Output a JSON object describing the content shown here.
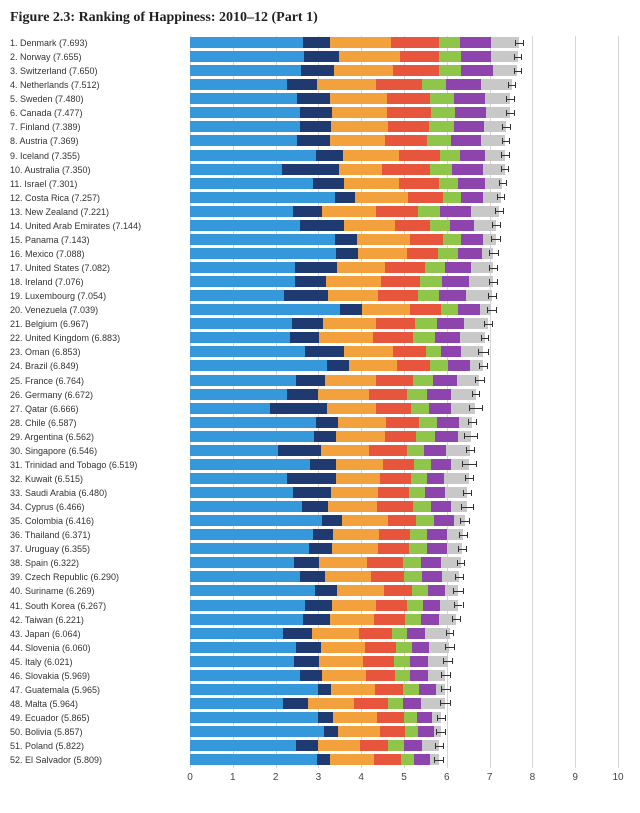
{
  "title": "Figure 2.3: Ranking of Happiness: 2010–12 (Part 1)",
  "chart": {
    "type": "bar",
    "xlim": [
      0,
      10
    ],
    "xticks": [
      0,
      1,
      2,
      3,
      4,
      5,
      6,
      7,
      8,
      9,
      10
    ],
    "grid_color": "#d6d6d6",
    "background_color": "#ffffff",
    "label_font": "Arial",
    "label_fontsize": 9,
    "tick_fontsize": 10,
    "colors": {
      "c1": "#3498db",
      "c2": "#1f3a70",
      "c3": "#f2a13c",
      "c4": "#e7553c",
      "c5": "#8fc549",
      "c6": "#8e44ad",
      "c7": "#c8c8c8",
      "err": "#333333"
    },
    "error_halfwidth": 0.09,
    "rows": [
      {
        "rank": 1,
        "country": "Denmark",
        "score": 7.693,
        "seg": [
          2.6,
          0.6,
          1.4,
          1.1,
          0.5,
          0.7,
          0.65
        ],
        "err": 0.09
      },
      {
        "rank": 2,
        "country": "Norway",
        "score": 7.655,
        "seg": [
          2.6,
          0.8,
          1.4,
          0.9,
          0.5,
          0.7,
          0.6
        ],
        "err": 0.09
      },
      {
        "rank": 3,
        "country": "Switzerland",
        "score": 7.65,
        "seg": [
          2.55,
          0.75,
          1.35,
          1.05,
          0.5,
          0.75,
          0.55
        ],
        "err": 0.09
      },
      {
        "rank": 4,
        "country": "Netherlands",
        "score": 7.512,
        "seg": [
          2.22,
          0.7,
          1.35,
          1.05,
          0.55,
          0.8,
          0.7
        ],
        "err": 0.09
      },
      {
        "rank": 5,
        "country": "Sweden",
        "score": 7.48,
        "seg": [
          2.45,
          0.75,
          1.3,
          1.0,
          0.55,
          0.7,
          0.58
        ],
        "err": 0.09
      },
      {
        "rank": 6,
        "country": "Canada",
        "score": 7.477,
        "seg": [
          2.5,
          0.75,
          1.25,
          1.0,
          0.55,
          0.7,
          0.55
        ],
        "err": 0.09
      },
      {
        "rank": 7,
        "country": "Finland",
        "score": 7.389,
        "seg": [
          2.5,
          0.7,
          1.3,
          0.95,
          0.55,
          0.7,
          0.5
        ],
        "err": 0.09
      },
      {
        "rank": 8,
        "country": "Austria",
        "score": 7.369,
        "seg": [
          2.45,
          0.75,
          1.25,
          0.95,
          0.55,
          0.7,
          0.55
        ],
        "err": 0.09
      },
      {
        "rank": 9,
        "country": "Iceland",
        "score": 7.355,
        "seg": [
          2.8,
          0.6,
          1.25,
          0.9,
          0.45,
          0.55,
          0.45
        ],
        "err": 0.09
      },
      {
        "rank": 10,
        "country": "Australia",
        "score": 7.35,
        "seg": [
          2.1,
          1.3,
          1.0,
          1.1,
          0.5,
          0.7,
          0.5
        ],
        "err": 0.09
      },
      {
        "rank": 11,
        "country": "Israel",
        "score": 7.301,
        "seg": [
          2.8,
          0.7,
          1.25,
          0.9,
          0.45,
          0.6,
          0.4
        ],
        "err": 0.09
      },
      {
        "rank": 12,
        "country": "Costa Rica",
        "score": 7.257,
        "seg": [
          3.3,
          0.45,
          1.2,
          0.8,
          0.4,
          0.5,
          0.4
        ],
        "err": 0.09
      },
      {
        "rank": 13,
        "country": "New Zealand",
        "score": 7.221,
        "seg": [
          2.35,
          0.65,
          1.25,
          0.95,
          0.5,
          0.7,
          0.65
        ],
        "err": 0.09
      },
      {
        "rank": 14,
        "country": "United Arab Emirates",
        "score": 7.144,
        "seg": [
          2.5,
          1.0,
          1.15,
          0.8,
          0.45,
          0.55,
          0.5
        ],
        "err": 0.09
      },
      {
        "rank": 15,
        "country": "Panama",
        "score": 7.143,
        "seg": [
          3.3,
          0.5,
          1.2,
          0.75,
          0.4,
          0.5,
          0.3
        ],
        "err": 0.1
      },
      {
        "rank": 16,
        "country": "Mexico",
        "score": 7.088,
        "seg": [
          3.3,
          0.5,
          1.1,
          0.7,
          0.45,
          0.55,
          0.25
        ],
        "err": 0.1
      },
      {
        "rank": 17,
        "country": "United States",
        "score": 7.082,
        "seg": [
          2.4,
          0.95,
          1.1,
          0.9,
          0.45,
          0.6,
          0.5
        ],
        "err": 0.09
      },
      {
        "rank": 18,
        "country": "Ireland",
        "score": 7.076,
        "seg": [
          2.4,
          0.7,
          1.25,
          0.9,
          0.5,
          0.6,
          0.55
        ],
        "err": 0.09
      },
      {
        "rank": 19,
        "country": "Luxembourg",
        "score": 7.054,
        "seg": [
          2.15,
          1.0,
          1.15,
          0.9,
          0.5,
          0.6,
          0.6
        ],
        "err": 0.09
      },
      {
        "rank": 20,
        "country": "Venezuela",
        "score": 7.039,
        "seg": [
          3.4,
          0.5,
          1.1,
          0.7,
          0.4,
          0.5,
          0.25
        ],
        "err": 0.1
      },
      {
        "rank": 21,
        "country": "Belgium",
        "score": 6.967,
        "seg": [
          2.3,
          0.7,
          1.2,
          0.9,
          0.5,
          0.6,
          0.55
        ],
        "err": 0.1
      },
      {
        "rank": 22,
        "country": "United Kingdom",
        "score": 6.883,
        "seg": [
          2.25,
          0.65,
          1.2,
          0.9,
          0.5,
          0.55,
          0.55
        ],
        "err": 0.09
      },
      {
        "rank": 23,
        "country": "Oman",
        "score": 6.853,
        "seg": [
          2.6,
          0.9,
          1.1,
          0.75,
          0.35,
          0.45,
          0.5
        ],
        "err": 0.12
      },
      {
        "rank": 24,
        "country": "Brazil",
        "score": 6.849,
        "seg": [
          3.1,
          0.5,
          1.1,
          0.75,
          0.4,
          0.5,
          0.3
        ],
        "err": 0.1
      },
      {
        "rank": 25,
        "country": "France",
        "score": 6.764,
        "seg": [
          2.4,
          0.65,
          1.15,
          0.85,
          0.45,
          0.55,
          0.5
        ],
        "err": 0.1
      },
      {
        "rank": 26,
        "country": "Germany",
        "score": 6.672,
        "seg": [
          2.2,
          0.7,
          1.15,
          0.85,
          0.45,
          0.55,
          0.55
        ],
        "err": 0.09
      },
      {
        "rank": 27,
        "country": "Qatar",
        "score": 6.666,
        "seg": [
          1.8,
          1.3,
          1.1,
          0.8,
          0.4,
          0.5,
          0.55
        ],
        "err": 0.15
      },
      {
        "rank": 28,
        "country": "Chile",
        "score": 6.587,
        "seg": [
          2.85,
          0.5,
          1.1,
          0.75,
          0.4,
          0.5,
          0.3
        ],
        "err": 0.1
      },
      {
        "rank": 29,
        "country": "Argentina",
        "score": 6.562,
        "seg": [
          2.8,
          0.5,
          1.1,
          0.7,
          0.45,
          0.5,
          0.3
        ],
        "err": 0.15
      },
      {
        "rank": 30,
        "country": "Singapore",
        "score": 6.546,
        "seg": [
          2.0,
          1.0,
          1.1,
          0.85,
          0.4,
          0.5,
          0.55
        ],
        "err": 0.1
      },
      {
        "rank": 31,
        "country": "Trinidad and Tobago",
        "score": 6.519,
        "seg": [
          2.7,
          0.6,
          1.05,
          0.7,
          0.4,
          0.45,
          0.4
        ],
        "err": 0.16
      },
      {
        "rank": 32,
        "country": "Kuwait",
        "score": 6.515,
        "seg": [
          2.2,
          1.1,
          1.0,
          0.7,
          0.35,
          0.4,
          0.55
        ],
        "err": 0.1
      },
      {
        "rank": 33,
        "country": "Saudi Arabia",
        "score": 6.48,
        "seg": [
          2.3,
          0.85,
          1.05,
          0.7,
          0.35,
          0.45,
          0.5
        ],
        "err": 0.09
      },
      {
        "rank": 34,
        "country": "Cyprus",
        "score": 6.466,
        "seg": [
          2.5,
          0.6,
          1.1,
          0.8,
          0.4,
          0.45,
          0.35
        ],
        "err": 0.14
      },
      {
        "rank": 35,
        "country": "Colombia",
        "score": 6.416,
        "seg": [
          3.0,
          0.45,
          1.05,
          0.65,
          0.4,
          0.45,
          0.25
        ],
        "err": 0.1
      },
      {
        "rank": 36,
        "country": "Thailand",
        "score": 6.371,
        "seg": [
          2.8,
          0.45,
          1.05,
          0.7,
          0.4,
          0.45,
          0.35
        ],
        "err": 0.09
      },
      {
        "rank": 37,
        "country": "Uruguay",
        "score": 6.355,
        "seg": [
          2.7,
          0.5,
          1.05,
          0.7,
          0.4,
          0.45,
          0.35
        ],
        "err": 0.1
      },
      {
        "rank": 38,
        "country": "Spain",
        "score": 6.322,
        "seg": [
          2.35,
          0.55,
          1.1,
          0.8,
          0.4,
          0.45,
          0.45
        ],
        "err": 0.09
      },
      {
        "rank": 39,
        "country": "Czech Republic",
        "score": 6.29,
        "seg": [
          2.5,
          0.55,
          1.05,
          0.75,
          0.4,
          0.45,
          0.4
        ],
        "err": 0.1
      },
      {
        "rank": 40,
        "country": "Suriname",
        "score": 6.269,
        "seg": [
          2.85,
          0.5,
          1.05,
          0.65,
          0.35,
          0.4,
          0.3
        ],
        "err": 0.12
      },
      {
        "rank": 41,
        "country": "South Korea",
        "score": 6.267,
        "seg": [
          2.6,
          0.6,
          1.0,
          0.7,
          0.35,
          0.4,
          0.4
        ],
        "err": 0.1
      },
      {
        "rank": 42,
        "country": "Taiwan",
        "score": 6.221,
        "seg": [
          2.55,
          0.6,
          1.0,
          0.7,
          0.35,
          0.4,
          0.4
        ],
        "err": 0.09
      },
      {
        "rank": 43,
        "country": "Japan",
        "score": 6.064,
        "seg": [
          2.1,
          0.65,
          1.05,
          0.75,
          0.35,
          0.4,
          0.55
        ],
        "err": 0.09
      },
      {
        "rank": 44,
        "country": "Slovenia",
        "score": 6.06,
        "seg": [
          2.4,
          0.55,
          1.0,
          0.7,
          0.35,
          0.4,
          0.45
        ],
        "err": 0.1
      },
      {
        "rank": 45,
        "country": "Italy",
        "score": 6.021,
        "seg": [
          2.35,
          0.55,
          1.0,
          0.7,
          0.35,
          0.4,
          0.45
        ],
        "err": 0.1
      },
      {
        "rank": 46,
        "country": "Slovakia",
        "score": 5.969,
        "seg": [
          2.5,
          0.5,
          1.0,
          0.65,
          0.35,
          0.4,
          0.4
        ],
        "err": 0.1
      },
      {
        "rank": 47,
        "country": "Guatemala",
        "score": 5.965,
        "seg": [
          2.9,
          0.3,
          1.0,
          0.65,
          0.35,
          0.4,
          0.2
        ],
        "err": 0.11
      },
      {
        "rank": 48,
        "country": "Malta",
        "score": 5.964,
        "seg": [
          2.1,
          0.55,
          1.05,
          0.75,
          0.35,
          0.4,
          0.55
        ],
        "err": 0.12
      },
      {
        "rank": 49,
        "country": "Ecuador",
        "score": 5.865,
        "seg": [
          2.9,
          0.35,
          1.0,
          0.6,
          0.3,
          0.35,
          0.2
        ],
        "err": 0.09
      },
      {
        "rank": 50,
        "country": "Bolivia",
        "score": 5.857,
        "seg": [
          3.0,
          0.3,
          0.95,
          0.55,
          0.3,
          0.35,
          0.15
        ],
        "err": 0.1
      },
      {
        "rank": 51,
        "country": "Poland",
        "score": 5.822,
        "seg": [
          2.4,
          0.5,
          0.95,
          0.65,
          0.35,
          0.4,
          0.4
        ],
        "err": 0.1
      },
      {
        "rank": 52,
        "country": "El Salvador",
        "score": 5.809,
        "seg": [
          2.85,
          0.3,
          1.0,
          0.6,
          0.3,
          0.35,
          0.2
        ],
        "err": 0.1
      }
    ]
  }
}
